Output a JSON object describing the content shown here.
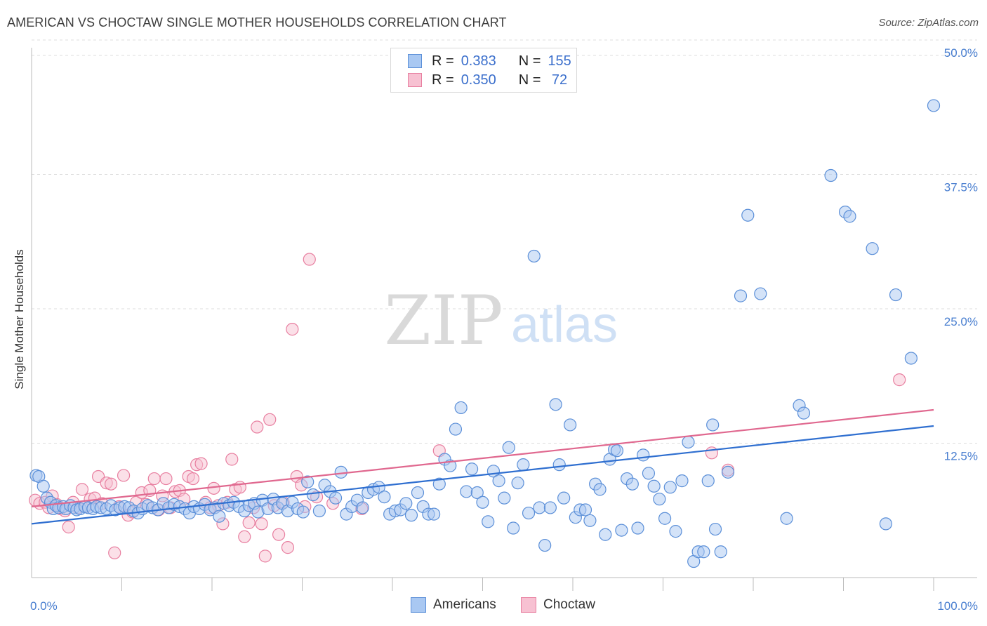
{
  "title": "AMERICAN VS CHOCTAW SINGLE MOTHER HOUSEHOLDS CORRELATION CHART",
  "source": "Source: ZipAtlas.com",
  "watermark": {
    "zip": "ZIP",
    "atlas": "atlas"
  },
  "colors": {
    "americans_fill": "#a9c8f2",
    "americans_stroke": "#5b8fd8",
    "americans_line": "#2f6fd0",
    "choctaw_fill": "#f7c1d2",
    "choctaw_stroke": "#e87fa0",
    "choctaw_line": "#e0688f",
    "tick_text": "#4a7fd0",
    "grid": "#dcdcdc"
  },
  "legend": {
    "rows": [
      {
        "r_label": "R =",
        "r_value": "0.383",
        "n_label": "N =",
        "n_value": "155"
      },
      {
        "r_label": "R =",
        "r_value": "0.350",
        "n_label": "N =",
        "n_value": " 72"
      }
    ]
  },
  "bottom_legend": [
    "Americans",
    "Choctaw"
  ],
  "chart_data": {
    "type": "scatter",
    "title": "AMERICAN VS CHOCTAW SINGLE MOTHER HOUSEHOLDS CORRELATION CHART",
    "xlabel": "",
    "ylabel": "Single Mother Households",
    "xlim": [
      0,
      100
    ],
    "ylim": [
      0,
      52
    ],
    "x_tick_labels": [
      "0.0%",
      "100.0%"
    ],
    "y_ticks": [
      12.5,
      25.0,
      37.5,
      50.0
    ],
    "y_tick_labels": [
      "12.5%",
      "25.0%",
      "37.5%",
      "50.0%"
    ],
    "grid": "horizontal dashed",
    "legend_position": "top-center",
    "series": [
      {
        "name": "Americans",
        "r": 0.383,
        "n": 155,
        "trend": [
          [
            0,
            5.0
          ],
          [
            100,
            14.1
          ]
        ],
        "points": [
          [
            0.5,
            9.5
          ],
          [
            0.8,
            9.4
          ],
          [
            1.3,
            8.5
          ],
          [
            1.7,
            7.4
          ],
          [
            2.1,
            7.0
          ],
          [
            2.4,
            6.4
          ],
          [
            2.7,
            6.7
          ],
          [
            3.0,
            6.5
          ],
          [
            3.5,
            6.6
          ],
          [
            3.8,
            6.4
          ],
          [
            4.3,
            6.7
          ],
          [
            4.7,
            6.5
          ],
          [
            5.0,
            6.3
          ],
          [
            5.4,
            6.4
          ],
          [
            5.9,
            6.6
          ],
          [
            6.3,
            6.5
          ],
          [
            6.8,
            6.4
          ],
          [
            7.2,
            6.6
          ],
          [
            7.7,
            6.5
          ],
          [
            8.3,
            6.4
          ],
          [
            8.8,
            6.7
          ],
          [
            9.3,
            6.3
          ],
          [
            9.8,
            6.5
          ],
          [
            10.3,
            6.6
          ],
          [
            10.8,
            6.5
          ],
          [
            11.3,
            6.2
          ],
          [
            11.8,
            6.0
          ],
          [
            12.3,
            6.4
          ],
          [
            12.9,
            6.7
          ],
          [
            13.4,
            6.5
          ],
          [
            14.0,
            6.3
          ],
          [
            14.6,
            6.9
          ],
          [
            15.2,
            6.5
          ],
          [
            15.8,
            6.8
          ],
          [
            16.4,
            6.6
          ],
          [
            17.0,
            6.4
          ],
          [
            17.5,
            6.0
          ],
          [
            18.0,
            6.6
          ],
          [
            18.6,
            6.4
          ],
          [
            19.2,
            6.8
          ],
          [
            19.8,
            6.3
          ],
          [
            20.3,
            6.5
          ],
          [
            20.8,
            5.7
          ],
          [
            21.3,
            6.9
          ],
          [
            21.9,
            6.7
          ],
          [
            22.4,
            7.0
          ],
          [
            23.0,
            6.6
          ],
          [
            23.6,
            6.2
          ],
          [
            24.1,
            6.7
          ],
          [
            24.7,
            6.9
          ],
          [
            25.1,
            6.1
          ],
          [
            25.6,
            7.2
          ],
          [
            26.2,
            6.4
          ],
          [
            26.8,
            7.3
          ],
          [
            27.3,
            6.5
          ],
          [
            27.8,
            6.9
          ],
          [
            28.4,
            6.2
          ],
          [
            28.9,
            7.0
          ],
          [
            29.5,
            6.4
          ],
          [
            30.1,
            6.1
          ],
          [
            30.6,
            8.9
          ],
          [
            31.2,
            7.7
          ],
          [
            31.9,
            6.2
          ],
          [
            32.5,
            8.6
          ],
          [
            33.1,
            8.0
          ],
          [
            33.7,
            7.4
          ],
          [
            34.3,
            9.8
          ],
          [
            34.9,
            5.9
          ],
          [
            35.5,
            6.6
          ],
          [
            36.1,
            7.2
          ],
          [
            36.7,
            6.5
          ],
          [
            37.3,
            7.9
          ],
          [
            37.9,
            8.2
          ],
          [
            38.5,
            8.4
          ],
          [
            39.1,
            7.5
          ],
          [
            39.7,
            5.9
          ],
          [
            40.3,
            6.2
          ],
          [
            40.9,
            6.3
          ],
          [
            41.5,
            6.9
          ],
          [
            42.1,
            5.8
          ],
          [
            42.8,
            7.9
          ],
          [
            43.4,
            6.6
          ],
          [
            44.0,
            5.9
          ],
          [
            44.6,
            5.9
          ],
          [
            45.2,
            8.7
          ],
          [
            45.8,
            11.0
          ],
          [
            46.4,
            10.4
          ],
          [
            47.0,
            13.8
          ],
          [
            47.6,
            15.8
          ],
          [
            48.2,
            8.0
          ],
          [
            48.8,
            10.1
          ],
          [
            49.4,
            7.9
          ],
          [
            50.0,
            7.0
          ],
          [
            50.6,
            5.2
          ],
          [
            51.2,
            9.9
          ],
          [
            51.8,
            9.0
          ],
          [
            52.4,
            7.4
          ],
          [
            52.9,
            12.1
          ],
          [
            53.4,
            4.6
          ],
          [
            53.9,
            8.8
          ],
          [
            54.5,
            10.5
          ],
          [
            55.1,
            6.0
          ],
          [
            55.7,
            29.9
          ],
          [
            56.3,
            6.5
          ],
          [
            56.9,
            3.0
          ],
          [
            57.5,
            6.5
          ],
          [
            58.1,
            16.1
          ],
          [
            58.5,
            10.5
          ],
          [
            59.0,
            7.4
          ],
          [
            59.7,
            14.2
          ],
          [
            60.3,
            5.6
          ],
          [
            60.8,
            6.3
          ],
          [
            61.4,
            6.3
          ],
          [
            61.9,
            5.3
          ],
          [
            62.5,
            8.7
          ],
          [
            63.0,
            8.2
          ],
          [
            63.6,
            4.0
          ],
          [
            64.1,
            11.0
          ],
          [
            64.6,
            11.9
          ],
          [
            64.9,
            11.8
          ],
          [
            65.4,
            4.4
          ],
          [
            66.0,
            9.2
          ],
          [
            66.6,
            8.7
          ],
          [
            67.2,
            4.6
          ],
          [
            67.8,
            11.4
          ],
          [
            68.4,
            9.7
          ],
          [
            69.0,
            8.5
          ],
          [
            69.6,
            7.3
          ],
          [
            70.2,
            5.5
          ],
          [
            70.8,
            8.4
          ],
          [
            71.4,
            4.3
          ],
          [
            72.1,
            9.0
          ],
          [
            72.8,
            12.6
          ],
          [
            73.4,
            1.5
          ],
          [
            73.9,
            2.4
          ],
          [
            74.5,
            2.4
          ],
          [
            75.0,
            9.0
          ],
          [
            75.5,
            14.2
          ],
          [
            75.8,
            4.5
          ],
          [
            76.4,
            2.4
          ],
          [
            77.2,
            9.8
          ],
          [
            78.6,
            26.2
          ],
          [
            79.4,
            33.7
          ],
          [
            80.8,
            26.4
          ],
          [
            83.7,
            5.5
          ],
          [
            85.1,
            16.0
          ],
          [
            85.6,
            15.3
          ],
          [
            88.6,
            37.4
          ],
          [
            90.2,
            34.0
          ],
          [
            90.7,
            33.6
          ],
          [
            93.2,
            30.6
          ],
          [
            94.7,
            5.0
          ],
          [
            95.8,
            26.3
          ],
          [
            97.5,
            20.4
          ],
          [
            100.0,
            43.9
          ]
        ]
      },
      {
        "name": "Choctaw",
        "r": 0.35,
        "n": 72,
        "trend": [
          [
            0,
            6.6
          ],
          [
            100,
            15.6
          ]
        ],
        "points": [
          [
            0.4,
            7.2
          ],
          [
            0.9,
            6.9
          ],
          [
            1.5,
            7.0
          ],
          [
            1.9,
            6.5
          ],
          [
            2.3,
            7.6
          ],
          [
            2.8,
            6.8
          ],
          [
            3.2,
            6.4
          ],
          [
            3.7,
            6.2
          ],
          [
            4.1,
            4.7
          ],
          [
            4.6,
            7.0
          ],
          [
            5.1,
            6.5
          ],
          [
            5.6,
            8.2
          ],
          [
            6.0,
            6.6
          ],
          [
            6.5,
            7.3
          ],
          [
            7.0,
            7.4
          ],
          [
            7.4,
            9.4
          ],
          [
            7.8,
            6.9
          ],
          [
            8.3,
            8.8
          ],
          [
            8.8,
            8.7
          ],
          [
            9.2,
            2.3
          ],
          [
            9.7,
            6.6
          ],
          [
            10.2,
            9.5
          ],
          [
            10.7,
            5.8
          ],
          [
            11.2,
            6.1
          ],
          [
            11.6,
            7.0
          ],
          [
            12.2,
            7.9
          ],
          [
            12.7,
            6.8
          ],
          [
            13.1,
            8.1
          ],
          [
            13.6,
            9.2
          ],
          [
            14.1,
            6.3
          ],
          [
            14.5,
            7.6
          ],
          [
            14.9,
            9.2
          ],
          [
            15.4,
            6.5
          ],
          [
            15.9,
            8.0
          ],
          [
            16.4,
            8.1
          ],
          [
            16.9,
            7.3
          ],
          [
            17.4,
            9.4
          ],
          [
            17.9,
            9.2
          ],
          [
            18.3,
            10.5
          ],
          [
            18.8,
            10.6
          ],
          [
            19.3,
            7.0
          ],
          [
            19.8,
            6.5
          ],
          [
            20.2,
            8.3
          ],
          [
            20.7,
            6.7
          ],
          [
            21.2,
            5.0
          ],
          [
            21.7,
            7.0
          ],
          [
            22.2,
            11.0
          ],
          [
            22.6,
            8.2
          ],
          [
            23.1,
            8.4
          ],
          [
            23.6,
            3.8
          ],
          [
            24.1,
            5.1
          ],
          [
            24.6,
            6.5
          ],
          [
            25.0,
            14.0
          ],
          [
            25.5,
            5.0
          ],
          [
            25.9,
            2.0
          ],
          [
            26.4,
            14.7
          ],
          [
            26.9,
            6.7
          ],
          [
            27.4,
            4.0
          ],
          [
            27.9,
            7.0
          ],
          [
            28.4,
            2.8
          ],
          [
            28.9,
            23.1
          ],
          [
            29.4,
            9.4
          ],
          [
            29.9,
            8.6
          ],
          [
            30.3,
            6.6
          ],
          [
            30.8,
            29.6
          ],
          [
            31.6,
            7.5
          ],
          [
            33.4,
            6.9
          ],
          [
            36.6,
            6.4
          ],
          [
            45.2,
            11.8
          ],
          [
            75.4,
            11.6
          ],
          [
            77.2,
            10.0
          ],
          [
            96.2,
            18.4
          ]
        ]
      }
    ]
  }
}
